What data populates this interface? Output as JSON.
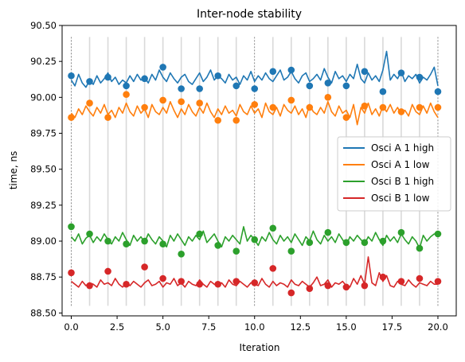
{
  "chart_data": {
    "type": "line",
    "title": "Inter-node stability",
    "xlabel": "Iteration",
    "ylabel": "time, ns",
    "xlim": [
      -0.5,
      21.0
    ],
    "ylim": [
      88.48,
      90.5
    ],
    "xticks": [
      0.0,
      2.5,
      5.0,
      7.5,
      10.0,
      12.5,
      15.0,
      17.5,
      20.0
    ],
    "xtick_labels": [
      "0.0",
      "2.5",
      "5.0",
      "7.5",
      "10.0",
      "12.5",
      "15.0",
      "17.5",
      "20.0"
    ],
    "yticks": [
      88.5,
      88.75,
      89.0,
      89.25,
      89.5,
      89.75,
      90.0,
      90.25,
      90.5
    ],
    "ytick_labels": [
      "88.50",
      "88.75",
      "89.00",
      "89.25",
      "89.50",
      "89.75",
      "90.00",
      "90.25",
      "90.50"
    ],
    "vertical_guides": {
      "light_x": [
        1,
        2,
        3,
        4,
        5,
        6,
        7,
        8,
        9,
        11,
        12,
        13,
        14,
        15,
        16,
        17,
        18,
        19
      ],
      "dashed_x": [
        0,
        10,
        20
      ],
      "y_range": [
        88.55,
        90.42
      ]
    },
    "legend_position": "center-right",
    "series": [
      {
        "name": "Osci A 1 high",
        "color": "#1f77b4",
        "line_x": [
          0.0,
          0.2,
          0.4,
          0.6,
          0.8,
          1.0,
          1.2,
          1.4,
          1.6,
          1.8,
          2.0,
          2.2,
          2.4,
          2.6,
          2.8,
          3.0,
          3.2,
          3.4,
          3.6,
          3.8,
          4.0,
          4.2,
          4.4,
          4.6,
          4.8,
          5.0,
          5.2,
          5.4,
          5.6,
          5.8,
          6.0,
          6.2,
          6.4,
          6.6,
          6.8,
          7.0,
          7.2,
          7.4,
          7.6,
          7.8,
          8.0,
          8.2,
          8.4,
          8.6,
          8.8,
          9.0,
          9.2,
          9.4,
          9.6,
          9.8,
          10.0,
          10.2,
          10.4,
          10.6,
          10.8,
          11.0,
          11.2,
          11.4,
          11.6,
          11.8,
          12.0,
          12.2,
          12.4,
          12.6,
          12.8,
          13.0,
          13.2,
          13.4,
          13.6,
          13.8,
          14.0,
          14.2,
          14.4,
          14.6,
          14.8,
          15.0,
          15.2,
          15.4,
          15.6,
          15.8,
          16.0,
          16.2,
          16.4,
          16.6,
          16.8,
          17.0,
          17.2,
          17.4,
          17.6,
          17.8,
          18.0,
          18.2,
          18.4,
          18.6,
          18.8,
          19.0,
          19.2,
          19.4,
          19.6,
          19.8,
          20.0
        ],
        "line_y": [
          90.12,
          90.08,
          90.16,
          90.1,
          90.07,
          90.12,
          90.09,
          90.15,
          90.1,
          90.13,
          90.17,
          90.11,
          90.14,
          90.09,
          90.12,
          90.1,
          90.15,
          90.11,
          90.16,
          90.12,
          90.14,
          90.1,
          90.16,
          90.12,
          90.19,
          90.14,
          90.11,
          90.17,
          90.13,
          90.1,
          90.14,
          90.16,
          90.11,
          90.09,
          90.13,
          90.17,
          90.11,
          90.14,
          90.19,
          90.12,
          90.15,
          90.13,
          90.1,
          90.16,
          90.12,
          90.14,
          90.09,
          90.15,
          90.12,
          90.18,
          90.11,
          90.15,
          90.12,
          90.17,
          90.13,
          90.11,
          90.15,
          90.19,
          90.12,
          90.14,
          90.18,
          90.13,
          90.1,
          90.15,
          90.17,
          90.11,
          90.13,
          90.16,
          90.12,
          90.2,
          90.14,
          90.1,
          90.18,
          90.13,
          90.15,
          90.11,
          90.16,
          90.13,
          90.23,
          90.13,
          90.1,
          90.17,
          90.12,
          90.15,
          90.11,
          90.19,
          90.32,
          90.12,
          90.16,
          90.13,
          90.18,
          90.11,
          90.15,
          90.13,
          90.16,
          90.1,
          90.14,
          90.12,
          90.16,
          90.21,
          90.08
        ],
        "markers_x": [
          0,
          1,
          2,
          3,
          4,
          5,
          6,
          7,
          8,
          9,
          10,
          11,
          12,
          13,
          14,
          15,
          16,
          17,
          18,
          19,
          20
        ],
        "markers_y": [
          90.15,
          90.11,
          90.14,
          90.08,
          90.13,
          90.21,
          90.06,
          90.06,
          90.15,
          90.08,
          90.06,
          90.18,
          90.19,
          90.08,
          90.1,
          90.08,
          90.18,
          90.04,
          90.17,
          90.14,
          90.04
        ]
      },
      {
        "name": "Osci A 1 low",
        "color": "#ff7f0e",
        "line_x": [
          0.0,
          0.2,
          0.4,
          0.6,
          0.8,
          1.0,
          1.2,
          1.4,
          1.6,
          1.8,
          2.0,
          2.2,
          2.4,
          2.6,
          2.8,
          3.0,
          3.2,
          3.4,
          3.6,
          3.8,
          4.0,
          4.2,
          4.4,
          4.6,
          4.8,
          5.0,
          5.2,
          5.4,
          5.6,
          5.8,
          6.0,
          6.2,
          6.4,
          6.6,
          6.8,
          7.0,
          7.2,
          7.4,
          7.6,
          7.8,
          8.0,
          8.2,
          8.4,
          8.6,
          8.8,
          9.0,
          9.2,
          9.4,
          9.6,
          9.8,
          10.0,
          10.2,
          10.4,
          10.6,
          10.8,
          11.0,
          11.2,
          11.4,
          11.6,
          11.8,
          12.0,
          12.2,
          12.4,
          12.6,
          12.8,
          13.0,
          13.2,
          13.4,
          13.6,
          13.8,
          14.0,
          14.2,
          14.4,
          14.6,
          14.8,
          15.0,
          15.2,
          15.4,
          15.6,
          15.8,
          16.0,
          16.2,
          16.4,
          16.6,
          16.8,
          17.0,
          17.2,
          17.4,
          17.6,
          17.8,
          18.0,
          18.2,
          18.4,
          18.6,
          18.8,
          19.0,
          19.2,
          19.4,
          19.6,
          19.8,
          20.0
        ],
        "line_y": [
          89.89,
          89.86,
          89.92,
          89.88,
          89.94,
          89.9,
          89.87,
          89.93,
          89.89,
          89.95,
          89.88,
          89.91,
          89.86,
          89.93,
          89.89,
          89.96,
          89.9,
          89.87,
          89.94,
          89.89,
          89.92,
          89.86,
          89.95,
          89.9,
          89.88,
          89.93,
          89.89,
          89.97,
          89.91,
          89.86,
          89.92,
          89.88,
          89.95,
          89.9,
          89.87,
          89.93,
          89.89,
          89.96,
          89.9,
          89.86,
          89.92,
          89.88,
          89.94,
          89.89,
          89.91,
          89.87,
          89.95,
          89.9,
          89.88,
          89.94,
          89.89,
          89.92,
          89.86,
          89.96,
          89.9,
          89.88,
          89.93,
          89.87,
          89.95,
          89.91,
          89.89,
          89.94,
          89.88,
          89.92,
          89.86,
          89.95,
          89.9,
          89.88,
          89.93,
          89.89,
          89.97,
          89.9,
          89.87,
          89.94,
          89.89,
          89.91,
          89.86,
          89.95,
          89.81,
          89.93,
          89.89,
          89.96,
          89.88,
          89.92,
          89.87,
          89.94,
          89.9,
          89.95,
          89.89,
          89.93,
          89.88,
          89.91,
          89.87,
          89.95,
          89.9,
          89.88,
          89.94,
          89.89,
          89.96,
          89.9,
          89.86
        ],
        "markers_x": [
          0,
          1,
          2,
          3,
          4,
          5,
          6,
          7,
          8,
          9,
          10,
          11,
          12,
          13,
          14,
          15,
          16,
          17,
          18,
          19,
          20
        ],
        "markers_y": [
          89.86,
          89.96,
          89.86,
          90.02,
          89.93,
          89.98,
          89.97,
          89.96,
          89.84,
          89.84,
          89.95,
          89.93,
          89.98,
          89.93,
          90.0,
          89.86,
          89.94,
          89.93,
          89.9,
          89.93,
          89.93
        ]
      },
      {
        "name": "Osci B 1 high",
        "color": "#2ca02c",
        "line_x": [
          0.0,
          0.2,
          0.4,
          0.6,
          0.8,
          1.0,
          1.2,
          1.4,
          1.6,
          1.8,
          2.0,
          2.2,
          2.4,
          2.6,
          2.8,
          3.0,
          3.2,
          3.4,
          3.6,
          3.8,
          4.0,
          4.2,
          4.4,
          4.6,
          4.8,
          5.0,
          5.2,
          5.4,
          5.6,
          5.8,
          6.0,
          6.2,
          6.4,
          6.6,
          6.8,
          7.0,
          7.2,
          7.4,
          7.6,
          7.8,
          8.0,
          8.2,
          8.4,
          8.6,
          8.8,
          9.0,
          9.2,
          9.4,
          9.6,
          9.8,
          10.0,
          10.2,
          10.4,
          10.6,
          10.8,
          11.0,
          11.2,
          11.4,
          11.6,
          11.8,
          12.0,
          12.2,
          12.4,
          12.6,
          12.8,
          13.0,
          13.2,
          13.4,
          13.6,
          13.8,
          14.0,
          14.2,
          14.4,
          14.6,
          14.8,
          15.0,
          15.2,
          15.4,
          15.6,
          15.8,
          16.0,
          16.2,
          16.4,
          16.6,
          16.8,
          17.0,
          17.2,
          17.4,
          17.6,
          17.8,
          18.0,
          18.2,
          18.4,
          18.6,
          18.8,
          19.0,
          19.2,
          19.4,
          19.6,
          19.8,
          20.0
        ],
        "line_y": [
          89.03,
          89.0,
          89.05,
          88.98,
          89.02,
          89.04,
          88.99,
          89.03,
          89.0,
          89.05,
          89.01,
          88.98,
          89.03,
          89.0,
          89.06,
          89.01,
          88.97,
          89.04,
          89.0,
          89.03,
          88.99,
          89.05,
          89.01,
          88.98,
          89.03,
          89.0,
          88.96,
          89.04,
          89.0,
          89.05,
          89.01,
          88.97,
          89.03,
          89.0,
          89.04,
          89.01,
          89.07,
          88.99,
          89.02,
          89.05,
          89.0,
          88.96,
          89.03,
          89.0,
          89.04,
          89.01,
          88.98,
          89.1,
          89.0,
          89.04,
          89.01,
          88.97,
          89.03,
          89.0,
          89.06,
          89.01,
          88.98,
          89.04,
          89.0,
          89.03,
          88.99,
          89.05,
          89.01,
          88.97,
          89.03,
          89.0,
          89.07,
          89.01,
          88.98,
          89.04,
          89.0,
          89.03,
          88.99,
          89.05,
          89.01,
          88.97,
          89.03,
          89.0,
          89.04,
          89.01,
          88.98,
          89.03,
          89.0,
          89.06,
          89.01,
          88.97,
          89.04,
          89.0,
          89.03,
          88.99,
          89.05,
          89.01,
          88.98,
          89.03,
          89.0,
          88.95,
          89.04,
          89.0,
          89.03,
          89.05,
          89.04
        ],
        "markers_x": [
          0,
          1,
          2,
          3,
          4,
          5,
          6,
          7,
          8,
          9,
          10,
          11,
          12,
          13,
          14,
          15,
          16,
          17,
          18,
          19,
          20
        ],
        "markers_y": [
          89.1,
          89.05,
          89.0,
          88.98,
          89.0,
          88.98,
          88.91,
          89.05,
          88.97,
          88.93,
          89.01,
          89.09,
          88.93,
          88.99,
          89.06,
          88.99,
          88.99,
          89.0,
          89.06,
          88.95,
          89.05
        ]
      },
      {
        "name": "Osci B 1 low",
        "color": "#d62728",
        "line_x": [
          0.0,
          0.2,
          0.4,
          0.6,
          0.8,
          1.0,
          1.2,
          1.4,
          1.6,
          1.8,
          2.0,
          2.2,
          2.4,
          2.6,
          2.8,
          3.0,
          3.2,
          3.4,
          3.6,
          3.8,
          4.0,
          4.2,
          4.4,
          4.6,
          4.8,
          5.0,
          5.2,
          5.4,
          5.6,
          5.8,
          6.0,
          6.2,
          6.4,
          6.6,
          6.8,
          7.0,
          7.2,
          7.4,
          7.6,
          7.8,
          8.0,
          8.2,
          8.4,
          8.6,
          8.8,
          9.0,
          9.2,
          9.4,
          9.6,
          9.8,
          10.0,
          10.2,
          10.4,
          10.6,
          10.8,
          11.0,
          11.2,
          11.4,
          11.6,
          11.8,
          12.0,
          12.2,
          12.4,
          12.6,
          12.8,
          13.0,
          13.2,
          13.4,
          13.6,
          13.8,
          14.0,
          14.2,
          14.4,
          14.6,
          14.8,
          15.0,
          15.2,
          15.4,
          15.6,
          15.8,
          16.0,
          16.2,
          16.4,
          16.6,
          16.8,
          17.0,
          17.2,
          17.4,
          17.6,
          17.8,
          18.0,
          18.2,
          18.4,
          18.6,
          18.8,
          19.0,
          19.2,
          19.4,
          19.6,
          19.8,
          20.0
        ],
        "line_y": [
          88.72,
          88.7,
          88.68,
          88.72,
          88.69,
          88.71,
          88.7,
          88.68,
          88.73,
          88.7,
          88.71,
          88.69,
          88.74,
          88.7,
          88.68,
          88.71,
          88.69,
          88.72,
          88.7,
          88.68,
          88.71,
          88.73,
          88.69,
          88.7,
          88.72,
          88.68,
          88.71,
          88.7,
          88.74,
          88.69,
          88.71,
          88.68,
          88.72,
          88.7,
          88.69,
          88.73,
          88.7,
          88.68,
          88.72,
          88.7,
          88.69,
          88.71,
          88.68,
          88.73,
          88.7,
          88.69,
          88.72,
          88.7,
          88.68,
          88.71,
          88.7,
          88.69,
          88.74,
          88.7,
          88.68,
          88.72,
          88.69,
          88.71,
          88.7,
          88.68,
          88.73,
          88.7,
          88.69,
          88.72,
          88.7,
          88.68,
          88.71,
          88.75,
          88.69,
          88.7,
          88.73,
          88.68,
          88.71,
          88.7,
          88.72,
          88.69,
          88.68,
          88.74,
          88.7,
          88.76,
          88.7,
          88.89,
          88.71,
          88.69,
          88.78,
          88.72,
          88.76,
          88.69,
          88.68,
          88.72,
          88.7,
          88.69,
          88.73,
          88.7,
          88.68,
          88.71,
          88.7,
          88.69,
          88.72,
          88.7,
          88.7
        ],
        "markers_x": [
          0,
          1,
          2,
          3,
          4,
          5,
          6,
          7,
          8,
          9,
          10,
          11,
          12,
          13,
          14,
          15,
          16,
          17,
          18,
          19,
          20
        ],
        "markers_y": [
          88.78,
          88.69,
          88.79,
          88.7,
          88.82,
          88.74,
          88.72,
          88.7,
          88.7,
          88.72,
          88.71,
          88.81,
          88.64,
          88.67,
          88.69,
          88.68,
          88.69,
          88.75,
          88.72,
          88.74,
          88.72
        ]
      }
    ]
  }
}
